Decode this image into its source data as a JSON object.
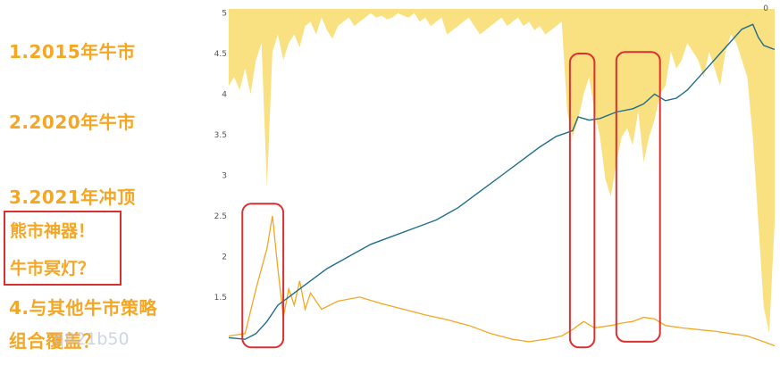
{
  "annotations": {
    "item1": "1.2015年牛市",
    "item2": "2.2020年牛市",
    "item3": "3.2021年冲顶",
    "box_line1": "熊市神器！",
    "box_line2": "牛市冥灯？",
    "item4_line1": "4.与其他牛市策略",
    "item4_line2": "组合覆盖？",
    "watermark": "q821b50"
  },
  "colors": {
    "nav_line": "#1f6e8c",
    "orange_line": "#f5a623",
    "drawdown_fill": "#f7d34a",
    "highlight_box": "#d93030"
  },
  "chart_data": {
    "type": "line",
    "title": "",
    "xlabel": "",
    "ylabel": "",
    "ylim": [
      0.85,
      5.05
    ],
    "y_ticks": [
      "1.5",
      "2",
      "2.5",
      "3",
      "3.5",
      "4",
      "4.5",
      "5"
    ],
    "right_axis_tick": "0",
    "grid": false,
    "x_range": [
      0,
      100
    ],
    "series": [
      {
        "role": "cumulative-net-value",
        "points": [
          [
            0,
            1.0
          ],
          [
            3,
            0.98
          ],
          [
            5,
            1.05
          ],
          [
            7,
            1.2
          ],
          [
            9,
            1.4
          ],
          [
            11,
            1.5
          ],
          [
            14,
            1.65
          ],
          [
            18,
            1.85
          ],
          [
            22,
            2.0
          ],
          [
            26,
            2.15
          ],
          [
            30,
            2.25
          ],
          [
            34,
            2.35
          ],
          [
            38,
            2.45
          ],
          [
            42,
            2.6
          ],
          [
            46,
            2.8
          ],
          [
            50,
            3.0
          ],
          [
            54,
            3.2
          ],
          [
            57,
            3.35
          ],
          [
            60,
            3.48
          ],
          [
            63,
            3.55
          ],
          [
            64,
            3.72
          ],
          [
            66,
            3.68
          ],
          [
            68,
            3.7
          ],
          [
            71,
            3.78
          ],
          [
            74,
            3.82
          ],
          [
            76,
            3.88
          ],
          [
            78,
            4.0
          ],
          [
            80,
            3.92
          ],
          [
            82,
            3.95
          ],
          [
            84,
            4.05
          ],
          [
            86,
            4.2
          ],
          [
            88,
            4.35
          ],
          [
            90,
            4.5
          ],
          [
            92,
            4.65
          ],
          [
            94,
            4.8
          ],
          [
            96,
            4.86
          ],
          [
            97,
            4.7
          ],
          [
            98,
            4.6
          ],
          [
            100,
            4.55
          ]
        ]
      },
      {
        "role": "orange-line",
        "points": [
          [
            0,
            1.02
          ],
          [
            3,
            1.05
          ],
          [
            5,
            1.6
          ],
          [
            7,
            2.1
          ],
          [
            8,
            2.5
          ],
          [
            9,
            1.85
          ],
          [
            10,
            1.25
          ],
          [
            11,
            1.6
          ],
          [
            12,
            1.4
          ],
          [
            13,
            1.7
          ],
          [
            14,
            1.35
          ],
          [
            15,
            1.55
          ],
          [
            17,
            1.35
          ],
          [
            20,
            1.45
          ],
          [
            24,
            1.5
          ],
          [
            28,
            1.42
          ],
          [
            32,
            1.35
          ],
          [
            36,
            1.28
          ],
          [
            40,
            1.22
          ],
          [
            44,
            1.15
          ],
          [
            48,
            1.05
          ],
          [
            52,
            0.98
          ],
          [
            55,
            0.95
          ],
          [
            58,
            0.98
          ],
          [
            61,
            1.02
          ],
          [
            63,
            1.1
          ],
          [
            65,
            1.2
          ],
          [
            67,
            1.12
          ],
          [
            70,
            1.15
          ],
          [
            72,
            1.18
          ],
          [
            74,
            1.2
          ],
          [
            76,
            1.25
          ],
          [
            78,
            1.23
          ],
          [
            80,
            1.15
          ],
          [
            83,
            1.12
          ],
          [
            86,
            1.1
          ],
          [
            89,
            1.08
          ],
          [
            92,
            1.05
          ],
          [
            95,
            1.02
          ],
          [
            98,
            0.95
          ],
          [
            100,
            0.9
          ]
        ]
      }
    ],
    "highlight_boxes": [
      {
        "x_range": [
          2.5,
          10
        ],
        "y_range": [
          0.88,
          2.65
        ]
      },
      {
        "x_range": [
          62.5,
          67
        ],
        "y_range": [
          0.88,
          4.5
        ]
      },
      {
        "x_range": [
          71,
          79
        ],
        "y_range": [
          0.95,
          4.52
        ]
      }
    ],
    "drawdown_depth_samples": [
      0.9,
      0.8,
      0.95,
      0.7,
      1.0,
      0.6,
      0.4,
      2.1,
      0.5,
      0.3,
      0.6,
      0.4,
      0.3,
      0.45,
      0.2,
      0.15,
      0.3,
      0.1,
      0.25,
      0.35,
      0.2,
      0.15,
      0.1,
      0.2,
      0.15,
      0.1,
      0.05,
      0.1,
      0.08,
      0.12,
      0.1,
      0.05,
      0.08,
      0.1,
      0.05,
      0.15,
      0.1,
      0.2,
      0.15,
      0.1,
      0.3,
      0.25,
      0.2,
      0.15,
      0.1,
      0.2,
      0.3,
      0.25,
      0.2,
      0.15,
      0.1,
      0.2,
      0.15,
      0.1,
      0.2,
      0.15,
      0.25,
      0.2,
      0.3,
      0.25,
      0.2,
      0.15,
      1.2,
      1.5,
      1.3,
      1.0,
      0.8,
      1.2,
      1.5,
      2.0,
      2.2,
      1.8,
      1.5,
      1.4,
      1.6,
      1.2,
      1.8,
      1.5,
      1.3,
      1.0,
      0.9,
      0.5,
      0.7,
      0.6,
      0.4,
      0.5,
      0.6,
      0.8,
      0.5,
      0.7,
      0.9,
      0.5,
      0.3,
      0.4,
      0.6,
      0.8,
      1.5,
      2.5,
      3.5,
      3.8,
      2.5
    ]
  }
}
